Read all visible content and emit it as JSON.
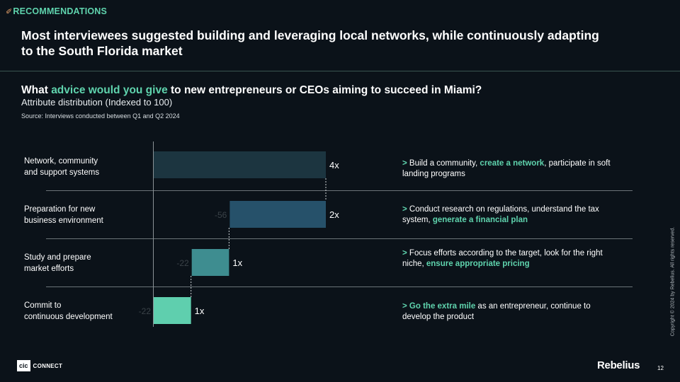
{
  "section_tag": {
    "icon": "rocket-icon",
    "label": "RECOMMENDATIONS"
  },
  "headline": "Most interviewees suggested building and leveraging local networks, while continuously adapting to the South Florida market",
  "question": {
    "pre": "What ",
    "highlight": "advice would you give",
    "post": " to new entrepreneurs or CEOs aiming to succeed in Miami?"
  },
  "subtitle": "Attribute distribution (Indexed to 100)",
  "source": "Source: Interviews conducted between Q1 and Q2 2024",
  "chart_data": {
    "type": "bar",
    "subtype": "waterfall",
    "categories": [
      "Network, community and support systems",
      "Preparation for new business environment",
      "Study and prepare market efforts",
      "Commit to continuous development"
    ],
    "totals": [
      100,
      44,
      22,
      0
    ],
    "steps": [
      null,
      -56,
      -22,
      -22
    ],
    "value_labels": [
      "4x",
      "2x",
      "1x",
      "1x"
    ],
    "step_labels": [
      "",
      "-56",
      "-22",
      "-22"
    ],
    "colors": [
      "#1c3540",
      "#26516a",
      "#3e8d90",
      "#5fcfae"
    ],
    "xlim": [
      0,
      100
    ],
    "grid": false
  },
  "rows": [
    {
      "label": "Network, community\nand support systems"
    },
    {
      "label": "Preparation for new\nbusiness environment"
    },
    {
      "label": "Study and prepare\nmarket efforts"
    },
    {
      "label": "Commit to\ncontinuous development"
    }
  ],
  "notes": [
    {
      "arrow": "> ",
      "pre": "Build a community, ",
      "hl": "create a network",
      "post": ", participate in soft landing programs"
    },
    {
      "arrow": "> ",
      "pre": "Conduct research on regulations, understand the tax system, ",
      "hl": "generate a financial plan",
      "post": ""
    },
    {
      "arrow": "> ",
      "pre": "Focus efforts according to the target, look for the right niche, ",
      "hl": "ensure appropriate pricing",
      "post": ""
    },
    {
      "arrow": "> ",
      "pre": "",
      "hl": "Go the extra mile",
      "post": " as an entrepreneur, continue to develop the product"
    }
  ],
  "copyright": "Copyright © 2024 by Rebelius. All rights reserved.",
  "footer": {
    "left_logo_box": "cic",
    "left_logo_text": "CONNECT",
    "right_logo": "Rebelius",
    "page": "12"
  }
}
